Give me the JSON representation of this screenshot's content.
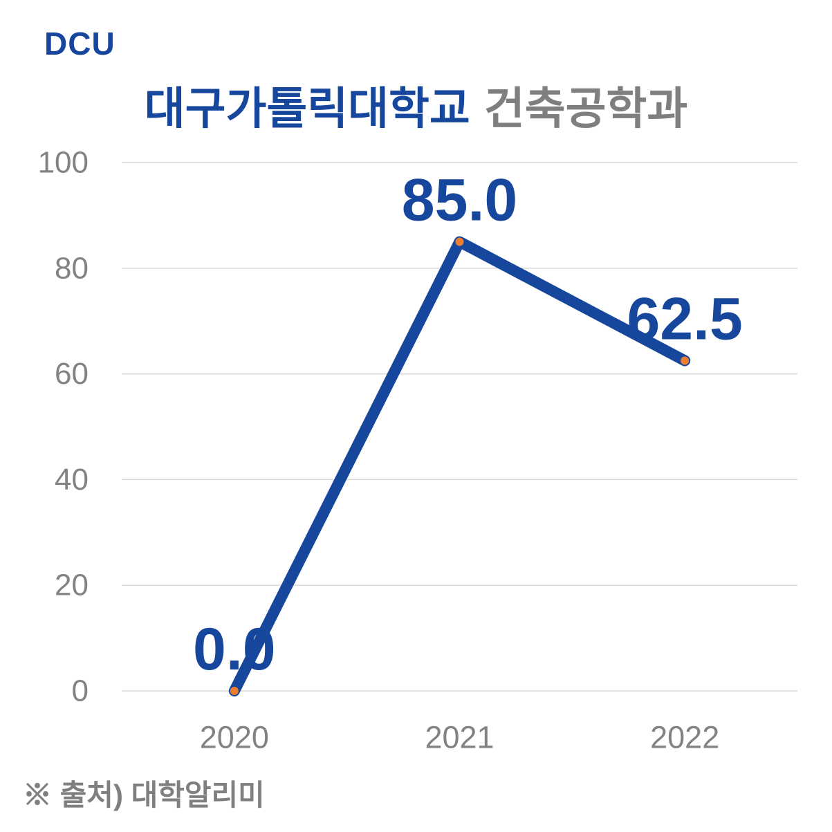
{
  "page": {
    "background": "#FFFFFF"
  },
  "logo": {
    "text": "DCU"
  },
  "title": {
    "primary": "대구가톨릭대학교",
    "secondary": "건축공학과"
  },
  "footer": {
    "source_note": "※ 출처) 대학알리미"
  },
  "colors": {
    "accent_blue": "#16479D",
    "title_gray": "#7F7F7F",
    "axis_gray": "#828282",
    "gridline": "#D9D9D9",
    "marker_orange": "#ED7D31"
  },
  "chart_data": {
    "type": "line",
    "title": "대구가톨릭대학교 건축공학과",
    "categories": [
      "2020",
      "2021",
      "2022"
    ],
    "series": [
      {
        "name": "대구가톨릭대학교 건축공학과",
        "values": [
          0.0,
          85.0,
          62.5
        ]
      }
    ],
    "data_labels": [
      "0.0",
      "85.0",
      "62.5"
    ],
    "xlabel": "",
    "ylabel": "",
    "ylim": [
      0,
      100
    ],
    "yticks": [
      0,
      20,
      40,
      60,
      80,
      100
    ],
    "grid": true,
    "legend": "none",
    "marker_style": "small-orange-dot"
  }
}
